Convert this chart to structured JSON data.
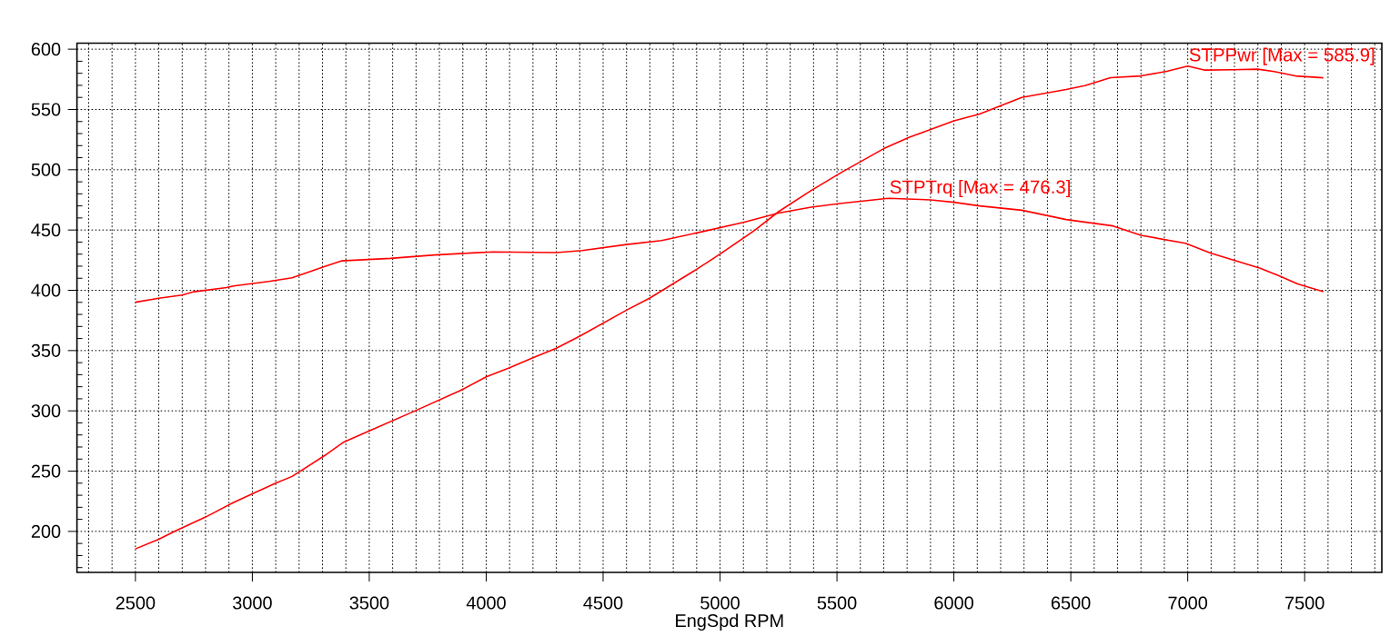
{
  "chart_data": {
    "type": "line",
    "xlabel": "EngSpd RPM",
    "xlim": [
      2250,
      7830
    ],
    "ylim": [
      166,
      605
    ],
    "xticks": [
      2500,
      3000,
      3500,
      4000,
      4500,
      5000,
      5500,
      6000,
      6500,
      7000,
      7500
    ],
    "yticks": [
      200,
      250,
      300,
      350,
      400,
      450,
      500,
      550,
      600
    ],
    "grid": true,
    "series": [
      {
        "color": "#ff0000",
        "x": [
          2500,
          2600,
          2670,
          2800,
          2920,
          3000,
          3100,
          3170,
          3310,
          3390,
          3500,
          3690,
          3890,
          4000,
          4100,
          4200,
          4300,
          4400,
          4600,
          4700,
          4900,
          5000,
          5150,
          5250,
          5390,
          5520,
          5700,
          5810,
          5890,
          6000,
          6110,
          6290,
          6480,
          6560,
          6670,
          6800,
          6910,
          7000,
          7070,
          7190,
          7300,
          7370,
          7460,
          7580
        ],
        "values": [
          185.5,
          193.5,
          200.3,
          211.9,
          224,
          231.2,
          240,
          245.6,
          263,
          274,
          283.3,
          299.5,
          316.9,
          328.2,
          335.8,
          344,
          352,
          362,
          383.5,
          393.6,
          417.4,
          430,
          450,
          465.2,
          482.8,
          497.9,
          517.5,
          527,
          532.7,
          540.6,
          546.2,
          560,
          566.5,
          569.7,
          576.4,
          577.8,
          581.6,
          585.9,
          582.7,
          583,
          583.4,
          581.4,
          577.8,
          576.3
        ]
      },
      {
        "color": "#ff0000",
        "x": [
          2500,
          2600,
          2700,
          2750,
          2890,
          2920,
          3070,
          3170,
          3310,
          3380,
          3590,
          3780,
          3940,
          4030,
          4300,
          4410,
          4600,
          4750,
          4930,
          5100,
          5250,
          5390,
          5520,
          5720,
          5900,
          6000,
          6110,
          6290,
          6480,
          6680,
          6800,
          6990,
          7100,
          7310,
          7390,
          7470,
          7580
        ],
        "values": [
          390.1,
          393.4,
          396,
          398.8,
          402.3,
          403.6,
          407.4,
          410.4,
          419.8,
          424.4,
          426.5,
          429.3,
          431,
          431.9,
          431.3,
          433,
          438,
          441.3,
          448.9,
          456.4,
          464,
          469,
          472.2,
          476.3,
          475,
          473,
          470,
          466.4,
          458.7,
          453.4,
          445.6,
          439,
          430.8,
          418.3,
          412,
          405.3,
          398.8
        ]
      }
    ],
    "annotations": [
      {
        "text": "STPPwr [Max = 585.9]",
        "x": 7000,
        "y": 585.9
      },
      {
        "text": "STPTrq [Max = 476.3]",
        "x": 5720,
        "y": 476.3
      }
    ]
  }
}
